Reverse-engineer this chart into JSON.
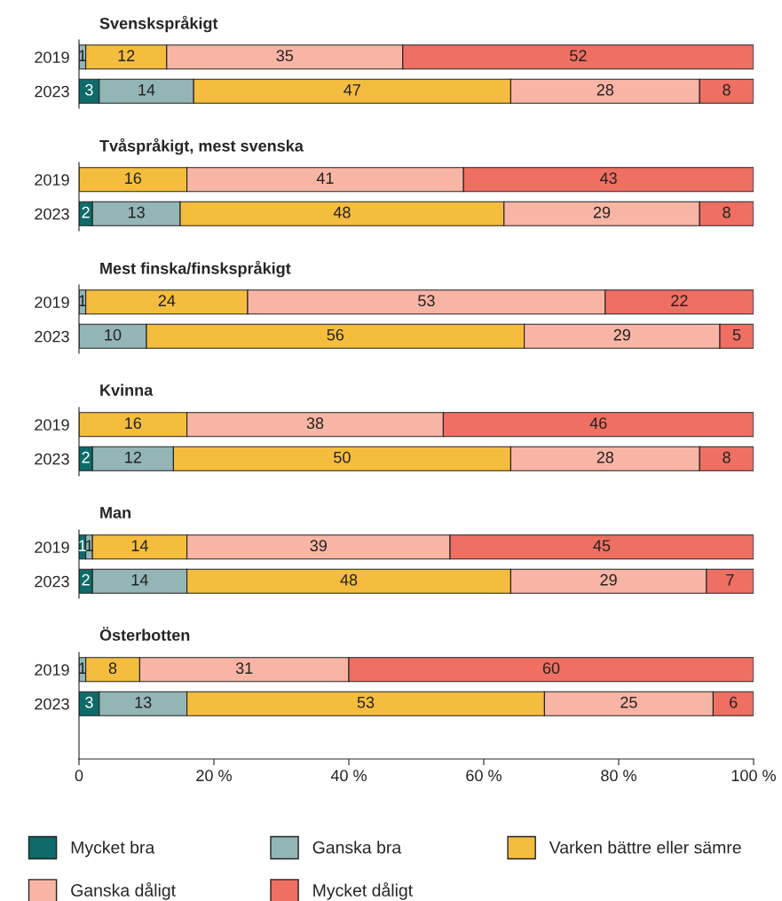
{
  "chart_data": [
    {
      "type": "bar",
      "orientation": "horizontal",
      "stacked": true,
      "title": "Svenskspråkigt",
      "categories": [
        "2019",
        "2023"
      ],
      "xlim": [
        0,
        100
      ],
      "tick_labels": "y",
      "data_labels": true,
      "series": [
        {
          "color": "#0e6b6a",
          "values": [
            null,
            3
          ]
        },
        {
          "color": "#93b5b5",
          "values": [
            1,
            14
          ]
        },
        {
          "color": "#f5bd3d",
          "values": [
            12,
            47
          ]
        },
        {
          "color": "#f8b5a5",
          "values": [
            35,
            28
          ]
        },
        {
          "color": "#ef6f63",
          "values": [
            52,
            8
          ]
        }
      ]
    },
    {
      "type": "bar",
      "orientation": "horizontal",
      "stacked": true,
      "title": "Tvåspråkigt, mest svenska",
      "categories": [
        "2019",
        "2023"
      ],
      "xlim": [
        0,
        100
      ],
      "tick_labels": "y",
      "data_labels": true,
      "series": [
        {
          "color": "#0e6b6a",
          "values": [
            null,
            2
          ]
        },
        {
          "color": "#93b5b5",
          "values": [
            null,
            13
          ]
        },
        {
          "color": "#f5bd3d",
          "values": [
            16,
            48
          ]
        },
        {
          "color": "#f8b5a5",
          "values": [
            41,
            29
          ]
        },
        {
          "color": "#ef6f63",
          "values": [
            43,
            8
          ]
        }
      ]
    },
    {
      "type": "bar",
      "orientation": "horizontal",
      "stacked": true,
      "title": "Mest finska/finskspråkigt",
      "categories": [
        "2019",
        "2023"
      ],
      "xlim": [
        0,
        100
      ],
      "tick_labels": "y",
      "data_labels": true,
      "series": [
        {
          "color": "#0e6b6a",
          "values": [
            null,
            null
          ]
        },
        {
          "color": "#93b5b5",
          "values": [
            1,
            10
          ]
        },
        {
          "color": "#f5bd3d",
          "values": [
            24,
            56
          ]
        },
        {
          "color": "#f8b5a5",
          "values": [
            53,
            29
          ]
        },
        {
          "color": "#ef6f63",
          "values": [
            22,
            5
          ]
        }
      ]
    },
    {
      "type": "bar",
      "orientation": "horizontal",
      "stacked": true,
      "title": "Kvinna",
      "categories": [
        "2019",
        "2023"
      ],
      "xlim": [
        0,
        100
      ],
      "tick_labels": "y",
      "data_labels": true,
      "series": [
        {
          "color": "#0e6b6a",
          "values": [
            null,
            2
          ]
        },
        {
          "color": "#93b5b5",
          "values": [
            null,
            12
          ]
        },
        {
          "color": "#f5bd3d",
          "values": [
            16,
            50
          ]
        },
        {
          "color": "#f8b5a5",
          "values": [
            38,
            28
          ]
        },
        {
          "color": "#ef6f63",
          "values": [
            46,
            8
          ]
        }
      ]
    },
    {
      "type": "bar",
      "orientation": "horizontal",
      "stacked": true,
      "title": "Man",
      "categories": [
        "2019",
        "2023"
      ],
      "xlim": [
        0,
        100
      ],
      "tick_labels": "y",
      "data_labels": true,
      "series": [
        {
          "color": "#0e6b6a",
          "values": [
            1,
            2
          ]
        },
        {
          "color": "#93b5b5",
          "values": [
            1,
            14
          ]
        },
        {
          "color": "#f5bd3d",
          "values": [
            14,
            48
          ]
        },
        {
          "color": "#f8b5a5",
          "values": [
            39,
            29
          ]
        },
        {
          "color": "#ef6f63",
          "values": [
            45,
            7
          ]
        }
      ]
    },
    {
      "type": "bar",
      "orientation": "horizontal",
      "stacked": true,
      "title": "Österbotten",
      "categories": [
        "2019",
        "2023"
      ],
      "xlim": [
        0,
        100
      ],
      "xticks": [
        0,
        {
          "value": 20,
          "label": "20 %"
        },
        {
          "value": 40,
          "label": "40 %"
        },
        {
          "value": 60,
          "label": "60 %"
        },
        {
          "value": 80,
          "label": "80 %"
        },
        {
          "value": 100,
          "label": "100 %"
        }
      ],
      "data_labels": true,
      "legend": "bottom",
      "series": [
        {
          "name": "Mycket bra",
          "color": "#0e6b6a",
          "values": [
            null,
            3
          ]
        },
        {
          "name": "Ganska bra",
          "color": "#93b5b5",
          "values": [
            1,
            13
          ]
        },
        {
          "name": "Varken bättre eller sämre",
          "color": "#f5bd3d",
          "values": [
            8,
            53
          ]
        },
        {
          "name": "Ganska dåligt",
          "color": "#f8b5a5",
          "values": [
            31,
            25
          ]
        },
        {
          "name": "Mycket dåligt",
          "color": "#ef6f63",
          "values": [
            60,
            6
          ]
        }
      ]
    }
  ]
}
